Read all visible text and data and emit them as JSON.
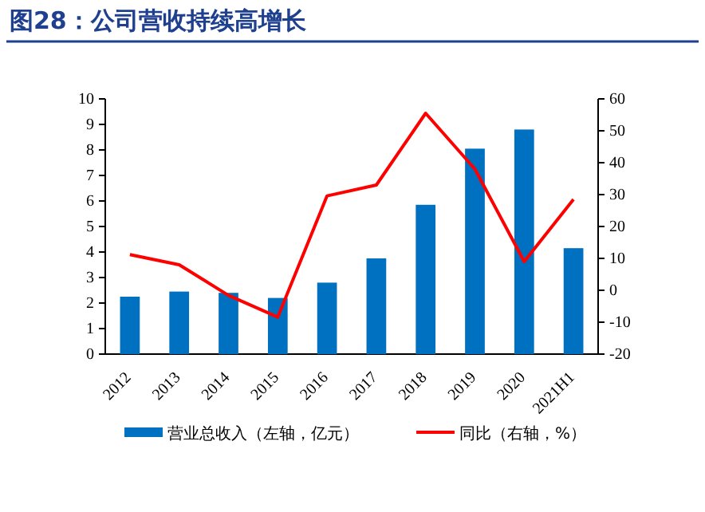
{
  "chart_data": {
    "type": "bar",
    "title": "图28：公司营收持续高增长",
    "categories": [
      "2012",
      "2013",
      "2014",
      "2015",
      "2016",
      "2017",
      "2018",
      "2019",
      "2020",
      "2021H1"
    ],
    "series": [
      {
        "name": "营业总收入（左轴，亿元）",
        "color": "#0070c0",
        "values": [
          2.25,
          2.45,
          2.4,
          2.2,
          2.8,
          3.75,
          5.85,
          8.05,
          8.8,
          4.15
        ]
      },
      {
        "name": "同比（右轴，%）",
        "type": "line",
        "axis": "y2",
        "color": "#ff0000",
        "values": [
          11.2,
          8,
          -1.6,
          -8.4,
          29.6,
          33,
          55.5,
          38,
          9,
          28.5
        ]
      }
    ],
    "ylim": [
      0,
      10
    ],
    "yticks": [
      0,
      1,
      2,
      3,
      4,
      5,
      6,
      7,
      8,
      9,
      10
    ],
    "y2lim": [
      -20,
      60
    ],
    "y2ticks": [
      -20,
      -10,
      0,
      10,
      20,
      30,
      40,
      50,
      60
    ],
    "legend": "bottom",
    "marker": "none",
    "line_style": "solid"
  }
}
